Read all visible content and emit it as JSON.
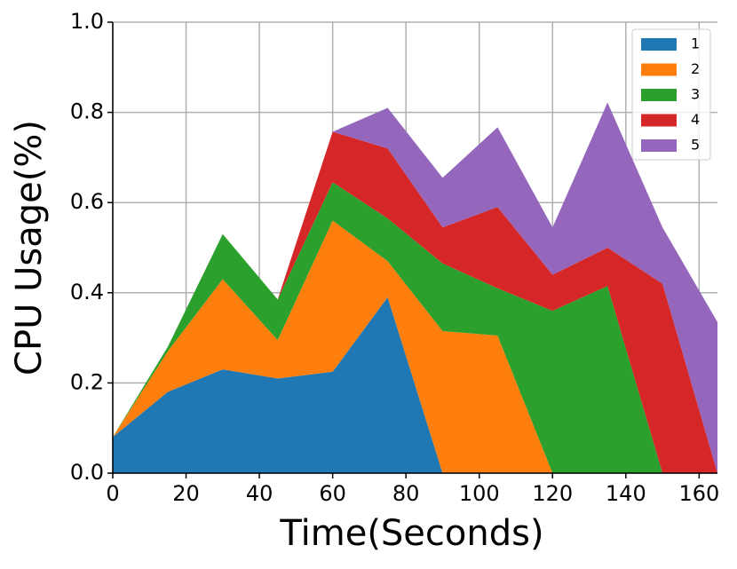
{
  "chart_data": {
    "type": "area",
    "stacked": true,
    "x": [
      0,
      15,
      30,
      45,
      60,
      75,
      90,
      105,
      120,
      135,
      150,
      165
    ],
    "series": [
      {
        "name": "1",
        "color": "#1f77b4",
        "values": [
          0.08,
          0.18,
          0.23,
          0.21,
          0.225,
          0.39,
          0,
          0,
          0,
          0,
          0,
          0
        ]
      },
      {
        "name": "2",
        "color": "#ff7f0e",
        "values": [
          0,
          0.09,
          0.2,
          0.085,
          0.335,
          0.08,
          0.315,
          0.305,
          0,
          0,
          0,
          0
        ]
      },
      {
        "name": "3",
        "color": "#2ca02c",
        "values": [
          0,
          0.01,
          0.1,
          0.09,
          0.085,
          0.095,
          0.15,
          0.105,
          0.36,
          0.415,
          0,
          0
        ]
      },
      {
        "name": "4",
        "color": "#d62728",
        "values": [
          0,
          0,
          0,
          0,
          0.112,
          0.155,
          0.08,
          0.18,
          0.08,
          0.085,
          0.42,
          0
        ]
      },
      {
        "name": "5",
        "color": "#9467bd",
        "values": [
          0,
          0,
          0,
          0,
          0,
          0.09,
          0.11,
          0.177,
          0.105,
          0.322,
          0.125,
          0.335
        ]
      }
    ],
    "xlabel": "Time(Seconds)",
    "ylabel": "CPU Usage(%)",
    "xlim": [
      0,
      165
    ],
    "xticks": [
      0,
      20,
      40,
      60,
      80,
      100,
      120,
      140,
      160
    ],
    "ylim": [
      0,
      1
    ],
    "yticks": [
      {
        "value": 0,
        "label": "0.0"
      },
      0.2,
      0.4,
      0.6,
      0.8,
      {
        "value": 1,
        "label": "1.0"
      }
    ],
    "grid": true,
    "legend": "upper right"
  }
}
